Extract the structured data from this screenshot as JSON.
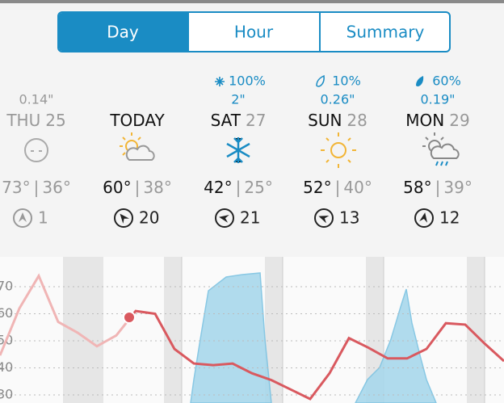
{
  "tabs": [
    "Day",
    "Hour",
    "Summary"
  ],
  "days": [
    {
      "precip_chance": null,
      "precip_amount": "0.14\"",
      "name": "THU",
      "date": "25",
      "high": "73°",
      "low": "36°",
      "wind": "1"
    },
    {
      "precip_chance": null,
      "precip_amount": null,
      "name": "TODAY",
      "date": null,
      "high": "60°",
      "low": "38°",
      "wind": "20"
    },
    {
      "precip_chance": "100%",
      "precip_amount": "2\"",
      "name": "SAT",
      "date": "27",
      "high": "42°",
      "low": "25°",
      "wind": "21"
    },
    {
      "precip_chance": "10%",
      "precip_amount": "0.26\"",
      "name": "SUN",
      "date": "28",
      "high": "52°",
      "low": "40°",
      "wind": "13"
    },
    {
      "precip_chance": "60%",
      "precip_amount": "0.19\"",
      "name": "MON",
      "date": "29",
      "high": "58°",
      "low": "39°",
      "wind": "12"
    }
  ],
  "graph": {
    "yticks": [
      70,
      60,
      50,
      40,
      30
    ],
    "temperature": [
      44.6,
      62,
      74,
      57,
      53,
      48,
      52,
      61,
      60,
      47,
      41.6,
      41,
      41.6,
      38,
      35.5,
      32,
      28.5,
      38,
      51,
      47.5,
      43.5,
      43.5,
      47,
      56.5,
      56,
      49,
      42.5
    ]
  }
}
